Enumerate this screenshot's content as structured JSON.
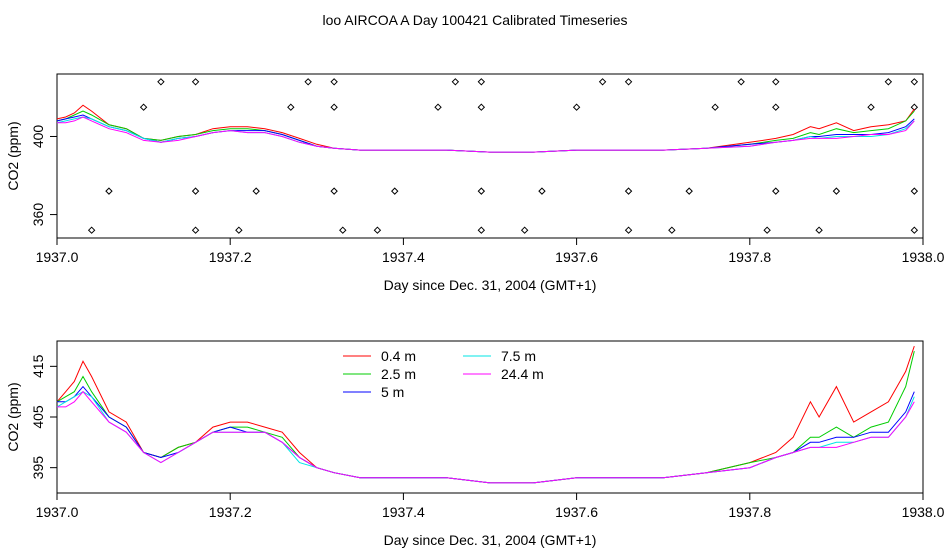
{
  "title": "loo AIRCOA A  Day 100421  Calibrated Timeseries",
  "colors": {
    "0.4 m": "#ff0000",
    "2.5 m": "#00cd00",
    "5 m": "#0000ff",
    "7.5 m": "#00e5e5",
    "24.4 m": "#ff00ff",
    "markers": "#000000"
  },
  "chart_data": [
    {
      "type": "line",
      "xlabel": "Day since Dec. 31, 2004 (GMT+1)",
      "ylabel": "CO2 (ppm)",
      "xlim": [
        1937.0,
        1938.0
      ],
      "ylim": [
        348,
        432
      ],
      "xticks": [
        "1937.0",
        "1937.2",
        "1937.4",
        "1937.6",
        "1937.8",
        "1938.0"
      ],
      "yticks": [
        "360",
        "400"
      ],
      "grid": false,
      "legend": "none",
      "series": [
        {
          "label_ref": "0.4 m",
          "x": [
            1937.0,
            1937.01,
            1937.02,
            1937.03,
            1937.04,
            1937.06,
            1937.08,
            1937.1,
            1937.12,
            1937.14,
            1937.16,
            1937.18,
            1937.2,
            1937.22,
            1937.24,
            1937.26,
            1937.28,
            1937.3,
            1937.32,
            1937.35,
            1937.4,
            1937.45,
            1937.5,
            1937.55,
            1937.6,
            1937.65,
            1937.7,
            1937.75,
            1937.8,
            1937.83,
            1937.85,
            1937.87,
            1937.88,
            1937.9,
            1937.92,
            1937.94,
            1937.96,
            1937.98,
            1937.99
          ],
          "y": [
            409,
            410,
            412,
            416,
            413,
            406,
            404,
            399,
            398,
            400,
            401,
            404,
            405,
            405,
            404,
            402,
            399,
            396,
            394,
            393,
            393,
            393,
            392,
            392,
            393,
            393,
            393,
            394,
            397,
            399,
            401,
            405,
            404,
            407,
            403,
            405,
            406,
            408,
            414
          ]
        },
        {
          "label_ref": "2.5 m",
          "x": [
            1937.0,
            1937.01,
            1937.02,
            1937.03,
            1937.04,
            1937.06,
            1937.08,
            1937.1,
            1937.12,
            1937.14,
            1937.16,
            1937.18,
            1937.2,
            1937.22,
            1937.24,
            1937.26,
            1937.28,
            1937.3,
            1937.32,
            1937.35,
            1937.4,
            1937.45,
            1937.5,
            1937.55,
            1937.6,
            1937.65,
            1937.7,
            1937.75,
            1937.8,
            1937.83,
            1937.85,
            1937.87,
            1937.88,
            1937.9,
            1937.92,
            1937.94,
            1937.96,
            1937.98,
            1937.99
          ],
          "y": [
            408,
            409,
            411,
            413,
            411,
            406,
            404,
            399,
            398,
            400,
            401,
            403,
            404,
            404,
            403,
            401,
            398,
            395,
            394,
            393,
            393,
            393,
            392,
            392,
            393,
            393,
            393,
            394,
            396,
            398,
            399,
            402,
            401,
            404,
            402,
            403,
            404,
            408,
            413
          ]
        },
        {
          "label_ref": "5 m",
          "x": [
            1937.0,
            1937.01,
            1937.02,
            1937.03,
            1937.04,
            1937.06,
            1937.08,
            1937.1,
            1937.12,
            1937.14,
            1937.16,
            1937.18,
            1937.2,
            1937.22,
            1937.24,
            1937.26,
            1937.28,
            1937.3,
            1937.32,
            1937.35,
            1937.4,
            1937.45,
            1937.5,
            1937.55,
            1937.6,
            1937.65,
            1937.7,
            1937.75,
            1937.8,
            1937.83,
            1937.85,
            1937.87,
            1937.88,
            1937.9,
            1937.92,
            1937.94,
            1937.96,
            1937.98,
            1937.99
          ],
          "y": [
            408,
            409,
            410,
            411,
            409,
            405,
            403,
            399,
            397,
            399,
            400,
            402,
            403,
            403,
            403,
            401,
            398,
            395,
            394,
            393,
            393,
            393,
            392,
            392,
            393,
            393,
            393,
            394,
            396,
            397,
            398,
            400,
            400,
            401,
            401,
            401,
            402,
            405,
            409
          ]
        },
        {
          "label_ref": "7.5 m",
          "x": [
            1937.0,
            1937.01,
            1937.02,
            1937.03,
            1937.04,
            1937.06,
            1937.08,
            1937.1,
            1937.12,
            1937.14,
            1937.16,
            1937.18,
            1937.2,
            1937.22,
            1937.24,
            1937.26,
            1937.28,
            1937.3,
            1937.32,
            1937.35,
            1937.4,
            1937.45,
            1937.5,
            1937.55,
            1937.6,
            1937.65,
            1937.7,
            1937.75,
            1937.8,
            1937.83,
            1937.85,
            1937.87,
            1937.88,
            1937.9,
            1937.92,
            1937.94,
            1937.96,
            1937.98,
            1937.99
          ],
          "y": [
            407,
            408,
            409,
            410,
            409,
            405,
            403,
            399,
            397,
            399,
            400,
            402,
            403,
            402,
            402,
            400,
            397,
            395,
            394,
            393,
            393,
            393,
            392,
            392,
            393,
            393,
            393,
            394,
            395,
            397,
            398,
            400,
            399,
            400,
            400,
            400,
            401,
            404,
            408
          ]
        },
        {
          "label_ref": "24.4 m",
          "x": [
            1937.0,
            1937.01,
            1937.02,
            1937.03,
            1937.04,
            1937.06,
            1937.08,
            1937.1,
            1937.12,
            1937.14,
            1937.16,
            1937.18,
            1937.2,
            1937.22,
            1937.24,
            1937.26,
            1937.28,
            1937.3,
            1937.32,
            1937.35,
            1937.4,
            1937.45,
            1937.5,
            1937.55,
            1937.6,
            1937.65,
            1937.7,
            1937.75,
            1937.8,
            1937.83,
            1937.85,
            1937.87,
            1937.88,
            1937.9,
            1937.92,
            1937.94,
            1937.96,
            1937.98,
            1937.99
          ],
          "y": [
            407,
            407,
            408,
            410,
            408,
            404,
            402,
            398,
            397,
            398,
            400,
            402,
            403,
            402,
            402,
            400,
            397,
            395,
            394,
            393,
            393,
            393,
            392,
            392,
            393,
            393,
            393,
            394,
            395,
            397,
            398,
            399,
            399,
            399,
            400,
            401,
            401,
            403,
            408
          ]
        }
      ],
      "markers": {
        "x": [
          1937.12,
          1937.16,
          1937.29,
          1937.32,
          1937.46,
          1937.49,
          1937.63,
          1937.66,
          1937.79,
          1937.83,
          1937.96,
          1937.99,
          1937.1,
          1937.27,
          1937.32,
          1937.44,
          1937.49,
          1937.6,
          1937.76,
          1937.83,
          1937.94,
          1937.99,
          1937.06,
          1937.16,
          1937.23,
          1937.32,
          1937.39,
          1937.49,
          1937.56,
          1937.66,
          1937.73,
          1937.83,
          1937.9,
          1937.99,
          1937.04,
          1937.16,
          1937.21,
          1937.33,
          1937.37,
          1937.49,
          1937.54,
          1937.66,
          1937.71,
          1937.82,
          1937.88,
          1937.99
        ],
        "y": [
          428,
          428,
          428,
          428,
          428,
          428,
          428,
          428,
          428,
          428,
          428,
          428,
          415,
          415,
          415,
          415,
          415,
          415,
          415,
          415,
          415,
          415,
          372,
          372,
          372,
          372,
          372,
          372,
          372,
          372,
          372,
          372,
          372,
          372,
          352,
          352,
          352,
          352,
          352,
          352,
          352,
          352,
          352,
          352,
          352,
          352
        ]
      }
    },
    {
      "type": "line",
      "xlabel": "Day since Dec. 31, 2004 (GMT+1)",
      "ylabel": "CO2 (ppm)",
      "xlim": [
        1937.0,
        1938.0
      ],
      "ylim": [
        390,
        420
      ],
      "xticks": [
        "1937.0",
        "1937.2",
        "1937.4",
        "1937.6",
        "1937.8",
        "1938.0"
      ],
      "yticks": [
        "395",
        "405",
        "415"
      ],
      "grid": false,
      "legend": "top-left (two columns)",
      "series": [
        {
          "name": "0.4 m",
          "x": [
            1937.0,
            1937.01,
            1937.02,
            1937.03,
            1937.04,
            1937.06,
            1937.08,
            1937.1,
            1937.12,
            1937.14,
            1937.16,
            1937.18,
            1937.2,
            1937.22,
            1937.24,
            1937.26,
            1937.28,
            1937.3,
            1937.32,
            1937.35,
            1937.4,
            1937.45,
            1937.5,
            1937.55,
            1937.6,
            1937.65,
            1937.7,
            1937.75,
            1937.8,
            1937.83,
            1937.85,
            1937.87,
            1937.88,
            1937.9,
            1937.92,
            1937.94,
            1937.96,
            1937.98,
            1937.99
          ],
          "y": [
            408,
            410,
            412,
            416,
            413,
            406,
            404,
            398,
            397,
            399,
            400,
            403,
            404,
            404,
            403,
            402,
            398,
            395,
            394,
            393,
            393,
            393,
            392,
            392,
            393,
            393,
            393,
            394,
            396,
            398,
            401,
            408,
            405,
            411,
            404,
            406,
            408,
            414,
            419
          ]
        },
        {
          "name": "2.5 m",
          "x": [
            1937.0,
            1937.01,
            1937.02,
            1937.03,
            1937.04,
            1937.06,
            1937.08,
            1937.1,
            1937.12,
            1937.14,
            1937.16,
            1937.18,
            1937.2,
            1937.22,
            1937.24,
            1937.26,
            1937.28,
            1937.3,
            1937.32,
            1937.35,
            1937.4,
            1937.45,
            1937.5,
            1937.55,
            1937.6,
            1937.65,
            1937.7,
            1937.75,
            1937.8,
            1937.83,
            1937.85,
            1937.87,
            1937.88,
            1937.9,
            1937.92,
            1937.94,
            1937.96,
            1937.98,
            1937.99
          ],
          "y": [
            408,
            409,
            410,
            413,
            410,
            405,
            403,
            398,
            397,
            399,
            400,
            402,
            403,
            403,
            402,
            401,
            397,
            395,
            394,
            393,
            393,
            393,
            392,
            392,
            393,
            393,
            393,
            394,
            396,
            397,
            398,
            401,
            401,
            403,
            401,
            403,
            404,
            411,
            418
          ]
        },
        {
          "name": "5 m",
          "x": [
            1937.0,
            1937.01,
            1937.02,
            1937.03,
            1937.04,
            1937.06,
            1937.08,
            1937.1,
            1937.12,
            1937.14,
            1937.16,
            1937.18,
            1937.2,
            1937.22,
            1937.24,
            1937.26,
            1937.28,
            1937.3,
            1937.32,
            1937.35,
            1937.4,
            1937.45,
            1937.5,
            1937.55,
            1937.6,
            1937.65,
            1937.7,
            1937.75,
            1937.8,
            1937.83,
            1937.85,
            1937.87,
            1937.88,
            1937.9,
            1937.92,
            1937.94,
            1937.96,
            1937.98,
            1937.99
          ],
          "y": [
            408,
            408,
            409,
            411,
            409,
            405,
            403,
            398,
            397,
            398,
            400,
            402,
            403,
            402,
            402,
            400,
            397,
            395,
            394,
            393,
            393,
            393,
            392,
            392,
            393,
            393,
            393,
            394,
            395,
            397,
            398,
            400,
            400,
            401,
            401,
            402,
            402,
            406,
            410
          ]
        },
        {
          "name": "7.5 m",
          "x": [
            1937.0,
            1937.01,
            1937.02,
            1937.03,
            1937.04,
            1937.06,
            1937.08,
            1937.1,
            1937.12,
            1937.14,
            1937.16,
            1937.18,
            1937.2,
            1937.22,
            1937.24,
            1937.26,
            1937.28,
            1937.3,
            1937.32,
            1937.35,
            1937.4,
            1937.45,
            1937.5,
            1937.55,
            1937.6,
            1937.65,
            1937.7,
            1937.75,
            1937.8,
            1937.83,
            1937.85,
            1937.87,
            1937.88,
            1937.9,
            1937.92,
            1937.94,
            1937.96,
            1937.98,
            1937.99
          ],
          "y": [
            407,
            408,
            409,
            410,
            409,
            404,
            402,
            398,
            396,
            398,
            400,
            402,
            402,
            402,
            402,
            400,
            396,
            395,
            394,
            393,
            393,
            393,
            392,
            392,
            393,
            393,
            393,
            394,
            395,
            397,
            398,
            399,
            399,
            400,
            400,
            401,
            401,
            405,
            409
          ]
        },
        {
          "name": "24.4 m",
          "x": [
            1937.0,
            1937.01,
            1937.02,
            1937.03,
            1937.04,
            1937.06,
            1937.08,
            1937.1,
            1937.12,
            1937.14,
            1937.16,
            1937.18,
            1937.2,
            1937.22,
            1937.24,
            1937.26,
            1937.28,
            1937.3,
            1937.32,
            1937.35,
            1937.4,
            1937.45,
            1937.5,
            1937.55,
            1937.6,
            1937.65,
            1937.7,
            1937.75,
            1937.8,
            1937.83,
            1937.85,
            1937.87,
            1937.88,
            1937.9,
            1937.92,
            1937.94,
            1937.96,
            1937.98,
            1937.99
          ],
          "y": [
            407,
            407,
            408,
            410,
            408,
            404,
            402,
            398,
            396,
            398,
            400,
            402,
            402,
            402,
            402,
            400,
            397,
            395,
            394,
            393,
            393,
            393,
            392,
            392,
            393,
            393,
            393,
            394,
            395,
            397,
            398,
            399,
            399,
            399,
            400,
            401,
            401,
            405,
            408
          ]
        }
      ]
    }
  ]
}
